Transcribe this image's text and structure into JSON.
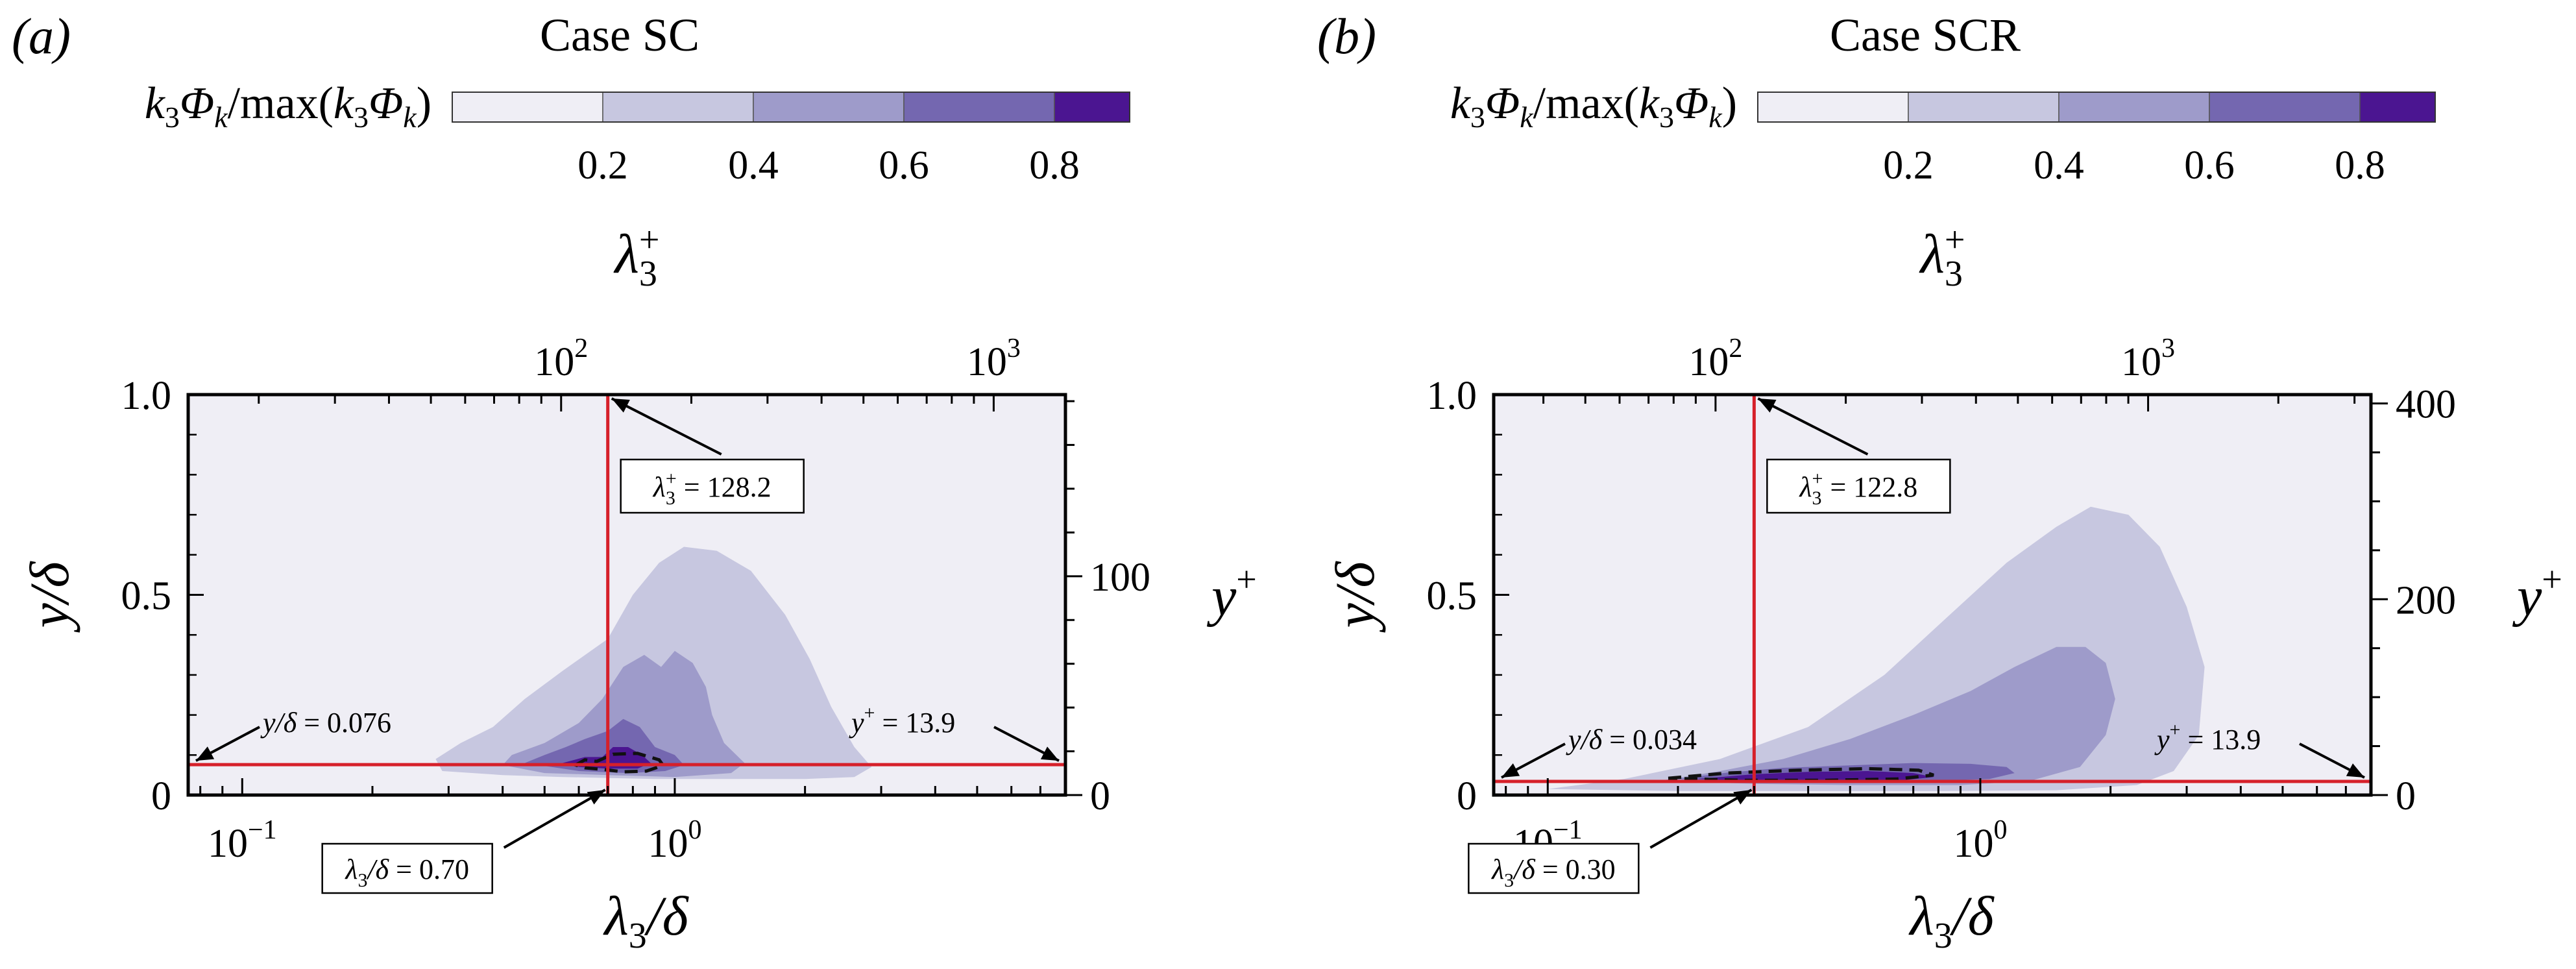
{
  "colors": {
    "levels": [
      "#efeef5",
      "#c7c7e0",
      "#9e9bca",
      "#7467b0",
      "#4b1591"
    ],
    "background_level": "#efeef5",
    "guide_line": "#d6202a",
    "dashed_contour": "#111111"
  },
  "chart_data": [
    {
      "type": "filled-contour",
      "panel_label": "(a)",
      "title": "Case SC",
      "colorbar": {
        "label": "k3Φk/max(k3Φk)",
        "ticks": [
          "0.2",
          "0.4",
          "0.6",
          "0.8"
        ],
        "levels": [
          0.0,
          0.2,
          0.4,
          0.6,
          0.8,
          0.9
        ]
      },
      "xlabel": "λ3/δ",
      "xscale": "log",
      "xlim": [
        0.075,
        8.0
      ],
      "xticks": [
        {
          "value": 0.1,
          "label": "10−1"
        },
        {
          "value": 1.0,
          "label": "100"
        }
      ],
      "top_xlabel": "λ3+",
      "top_xticks": [
        {
          "value": 100,
          "label": "102"
        },
        {
          "value": 1000,
          "label": "103"
        }
      ],
      "ylabel": "y/δ",
      "ylim": [
        0,
        1.0
      ],
      "yticks": [
        "0",
        "0.5",
        "1.0"
      ],
      "right_ylabel": "y+",
      "right_ylim": [
        0,
        183
      ],
      "right_yticks": [
        {
          "value": 0,
          "label": "0"
        },
        {
          "value": 100,
          "label": "100"
        }
      ],
      "contours": [
        {
          "level": 0.2,
          "points": [
            [
              0.29,
              0.06
            ],
            [
              0.28,
              0.09
            ],
            [
              0.32,
              0.13
            ],
            [
              0.38,
              0.17
            ],
            [
              0.45,
              0.24
            ],
            [
              0.55,
              0.31
            ],
            [
              0.7,
              0.39
            ],
            [
              0.8,
              0.5
            ],
            [
              0.92,
              0.58
            ],
            [
              1.05,
              0.62
            ],
            [
              1.25,
              0.61
            ],
            [
              1.5,
              0.56
            ],
            [
              1.8,
              0.45
            ],
            [
              2.05,
              0.34
            ],
            [
              2.3,
              0.22
            ],
            [
              2.6,
              0.12
            ],
            [
              2.85,
              0.07
            ],
            [
              2.6,
              0.045
            ],
            [
              2.0,
              0.04
            ],
            [
              1.4,
              0.04
            ],
            [
              0.9,
              0.04
            ],
            [
              0.55,
              0.045
            ],
            [
              0.4,
              0.05
            ]
          ]
        },
        {
          "level": 0.4,
          "points": [
            [
              0.4,
              0.075
            ],
            [
              0.42,
              0.1
            ],
            [
              0.5,
              0.13
            ],
            [
              0.6,
              0.18
            ],
            [
              0.68,
              0.24
            ],
            [
              0.76,
              0.32
            ],
            [
              0.85,
              0.35
            ],
            [
              0.93,
              0.32
            ],
            [
              1.0,
              0.36
            ],
            [
              1.1,
              0.33
            ],
            [
              1.18,
              0.27
            ],
            [
              1.22,
              0.2
            ],
            [
              1.3,
              0.13
            ],
            [
              1.45,
              0.08
            ],
            [
              1.35,
              0.055
            ],
            [
              1.0,
              0.045
            ],
            [
              0.7,
              0.05
            ],
            [
              0.5,
              0.055
            ]
          ]
        },
        {
          "level": 0.6,
          "points": [
            [
              0.45,
              0.08
            ],
            [
              0.5,
              0.1
            ],
            [
              0.56,
              0.12
            ],
            [
              0.62,
              0.14
            ],
            [
              0.7,
              0.16
            ],
            [
              0.76,
              0.19
            ],
            [
              0.83,
              0.17
            ],
            [
              0.9,
              0.12
            ],
            [
              1.0,
              0.1
            ],
            [
              1.05,
              0.075
            ],
            [
              0.95,
              0.06
            ],
            [
              0.78,
              0.055
            ],
            [
              0.6,
              0.06
            ]
          ]
        },
        {
          "level": 0.8,
          "points": [
            [
              0.55,
              0.08
            ],
            [
              0.62,
              0.095
            ],
            [
              0.68,
              0.095
            ],
            [
              0.72,
              0.12
            ],
            [
              0.78,
              0.12
            ],
            [
              0.84,
              0.1
            ],
            [
              0.88,
              0.08
            ],
            [
              0.82,
              0.066
            ],
            [
              0.7,
              0.066
            ],
            [
              0.6,
              0.07
            ]
          ]
        }
      ],
      "dashed_contour": [
        [
          0.59,
          0.075
        ],
        [
          0.62,
          0.088
        ],
        [
          0.66,
          0.084
        ],
        [
          0.72,
          0.102
        ],
        [
          0.82,
          0.104
        ],
        [
          0.92,
          0.088
        ],
        [
          0.94,
          0.074
        ],
        [
          0.86,
          0.06
        ],
        [
          0.76,
          0.058
        ],
        [
          0.68,
          0.064
        ],
        [
          0.62,
          0.068
        ]
      ],
      "guide_lines": {
        "x": 0.7,
        "y": 0.076
      },
      "annotations": {
        "top": {
          "prefix": "λ",
          "sub": "3",
          "sup": "+",
          "value": "= 128.2"
        },
        "bottom": {
          "prefix": "λ",
          "sub": "3",
          "mid": "/δ",
          "value": "= 0.70"
        },
        "left": {
          "prefix": "y/δ",
          "value": "= 0.076"
        },
        "right": {
          "prefix": "y",
          "sup": "+",
          "value": "= 13.9"
        }
      }
    },
    {
      "type": "filled-contour",
      "panel_label": "(b)",
      "title": "Case SCR",
      "colorbar": {
        "label": "k3Φk/max(k3Φk)",
        "ticks": [
          "0.2",
          "0.4",
          "0.6",
          "0.8"
        ],
        "levels": [
          0.0,
          0.2,
          0.4,
          0.6,
          0.8,
          0.9
        ]
      },
      "xlabel": "λ3/δ",
      "xscale": "log",
      "xlim": [
        0.075,
        8.0
      ],
      "xticks": [
        {
          "value": 0.1,
          "label": "10−1"
        },
        {
          "value": 1.0,
          "label": "100"
        }
      ],
      "top_xlabel": "λ3+",
      "top_xticks": [
        {
          "value": 100,
          "label": "102"
        },
        {
          "value": 1000,
          "label": "103"
        }
      ],
      "ylabel": "y/δ",
      "ylim": [
        0,
        1.0
      ],
      "yticks": [
        "0",
        "0.5",
        "1.0"
      ],
      "right_ylabel": "y+",
      "right_ylim": [
        0,
        409
      ],
      "right_yticks": [
        {
          "value": 0,
          "label": "0"
        },
        {
          "value": 200,
          "label": "200"
        },
        {
          "value": 400,
          "label": "400"
        }
      ],
      "contours": [
        {
          "level": 0.2,
          "points": [
            [
              0.1,
              0.015
            ],
            [
              0.15,
              0.04
            ],
            [
              0.25,
              0.09
            ],
            [
              0.4,
              0.17
            ],
            [
              0.6,
              0.3
            ],
            [
              0.85,
              0.45
            ],
            [
              1.15,
              0.58
            ],
            [
              1.5,
              0.67
            ],
            [
              1.8,
              0.72
            ],
            [
              2.2,
              0.7
            ],
            [
              2.6,
              0.62
            ],
            [
              3.0,
              0.47
            ],
            [
              3.3,
              0.32
            ],
            [
              3.2,
              0.15
            ],
            [
              2.8,
              0.06
            ],
            [
              2.3,
              0.025
            ],
            [
              1.5,
              0.012
            ],
            [
              0.8,
              0.01
            ],
            [
              0.4,
              0.01
            ],
            [
              0.2,
              0.01
            ]
          ]
        },
        {
          "level": 0.4,
          "points": [
            [
              0.18,
              0.035
            ],
            [
              0.25,
              0.06
            ],
            [
              0.35,
              0.09
            ],
            [
              0.5,
              0.14
            ],
            [
              0.7,
              0.2
            ],
            [
              0.95,
              0.26
            ],
            [
              1.2,
              0.32
            ],
            [
              1.5,
              0.37
            ],
            [
              1.75,
              0.37
            ],
            [
              1.95,
              0.33
            ],
            [
              2.05,
              0.24
            ],
            [
              1.95,
              0.15
            ],
            [
              1.7,
              0.07
            ],
            [
              1.3,
              0.035
            ],
            [
              0.9,
              0.025
            ],
            [
              0.5,
              0.025
            ],
            [
              0.3,
              0.028
            ]
          ]
        },
        {
          "level": 0.6,
          "points": [
            [
              0.2,
              0.04
            ],
            [
              0.26,
              0.056
            ],
            [
              0.35,
              0.068
            ],
            [
              0.5,
              0.074
            ],
            [
              0.7,
              0.08
            ],
            [
              0.95,
              0.078
            ],
            [
              1.15,
              0.07
            ],
            [
              1.2,
              0.055
            ],
            [
              1.05,
              0.04
            ],
            [
              0.75,
              0.035
            ],
            [
              0.45,
              0.032
            ],
            [
              0.28,
              0.034
            ]
          ]
        },
        {
          "level": 0.8,
          "points": [
            [
              0.22,
              0.04
            ],
            [
              0.3,
              0.052
            ],
            [
              0.4,
              0.058
            ],
            [
              0.55,
              0.06
            ],
            [
              0.7,
              0.055
            ],
            [
              0.78,
              0.045
            ],
            [
              0.65,
              0.036
            ],
            [
              0.45,
              0.034
            ],
            [
              0.3,
              0.035
            ]
          ]
        }
      ],
      "dashed_contour": [
        [
          0.19,
          0.042
        ],
        [
          0.26,
          0.055
        ],
        [
          0.38,
          0.062
        ],
        [
          0.55,
          0.066
        ],
        [
          0.72,
          0.062
        ],
        [
          0.78,
          0.05
        ],
        [
          0.64,
          0.04
        ],
        [
          0.44,
          0.037
        ],
        [
          0.28,
          0.037
        ]
      ],
      "guide_lines": {
        "x": 0.3,
        "y": 0.034
      },
      "annotations": {
        "top": {
          "prefix": "λ",
          "sub": "3",
          "sup": "+",
          "value": "= 122.8"
        },
        "bottom": {
          "prefix": "λ",
          "sub": "3",
          "mid": "/δ",
          "value": "= 0.30"
        },
        "left": {
          "prefix": "y/δ",
          "value": "= 0.034"
        },
        "right": {
          "prefix": "y",
          "sup": "+",
          "value": "= 13.9"
        }
      }
    }
  ]
}
